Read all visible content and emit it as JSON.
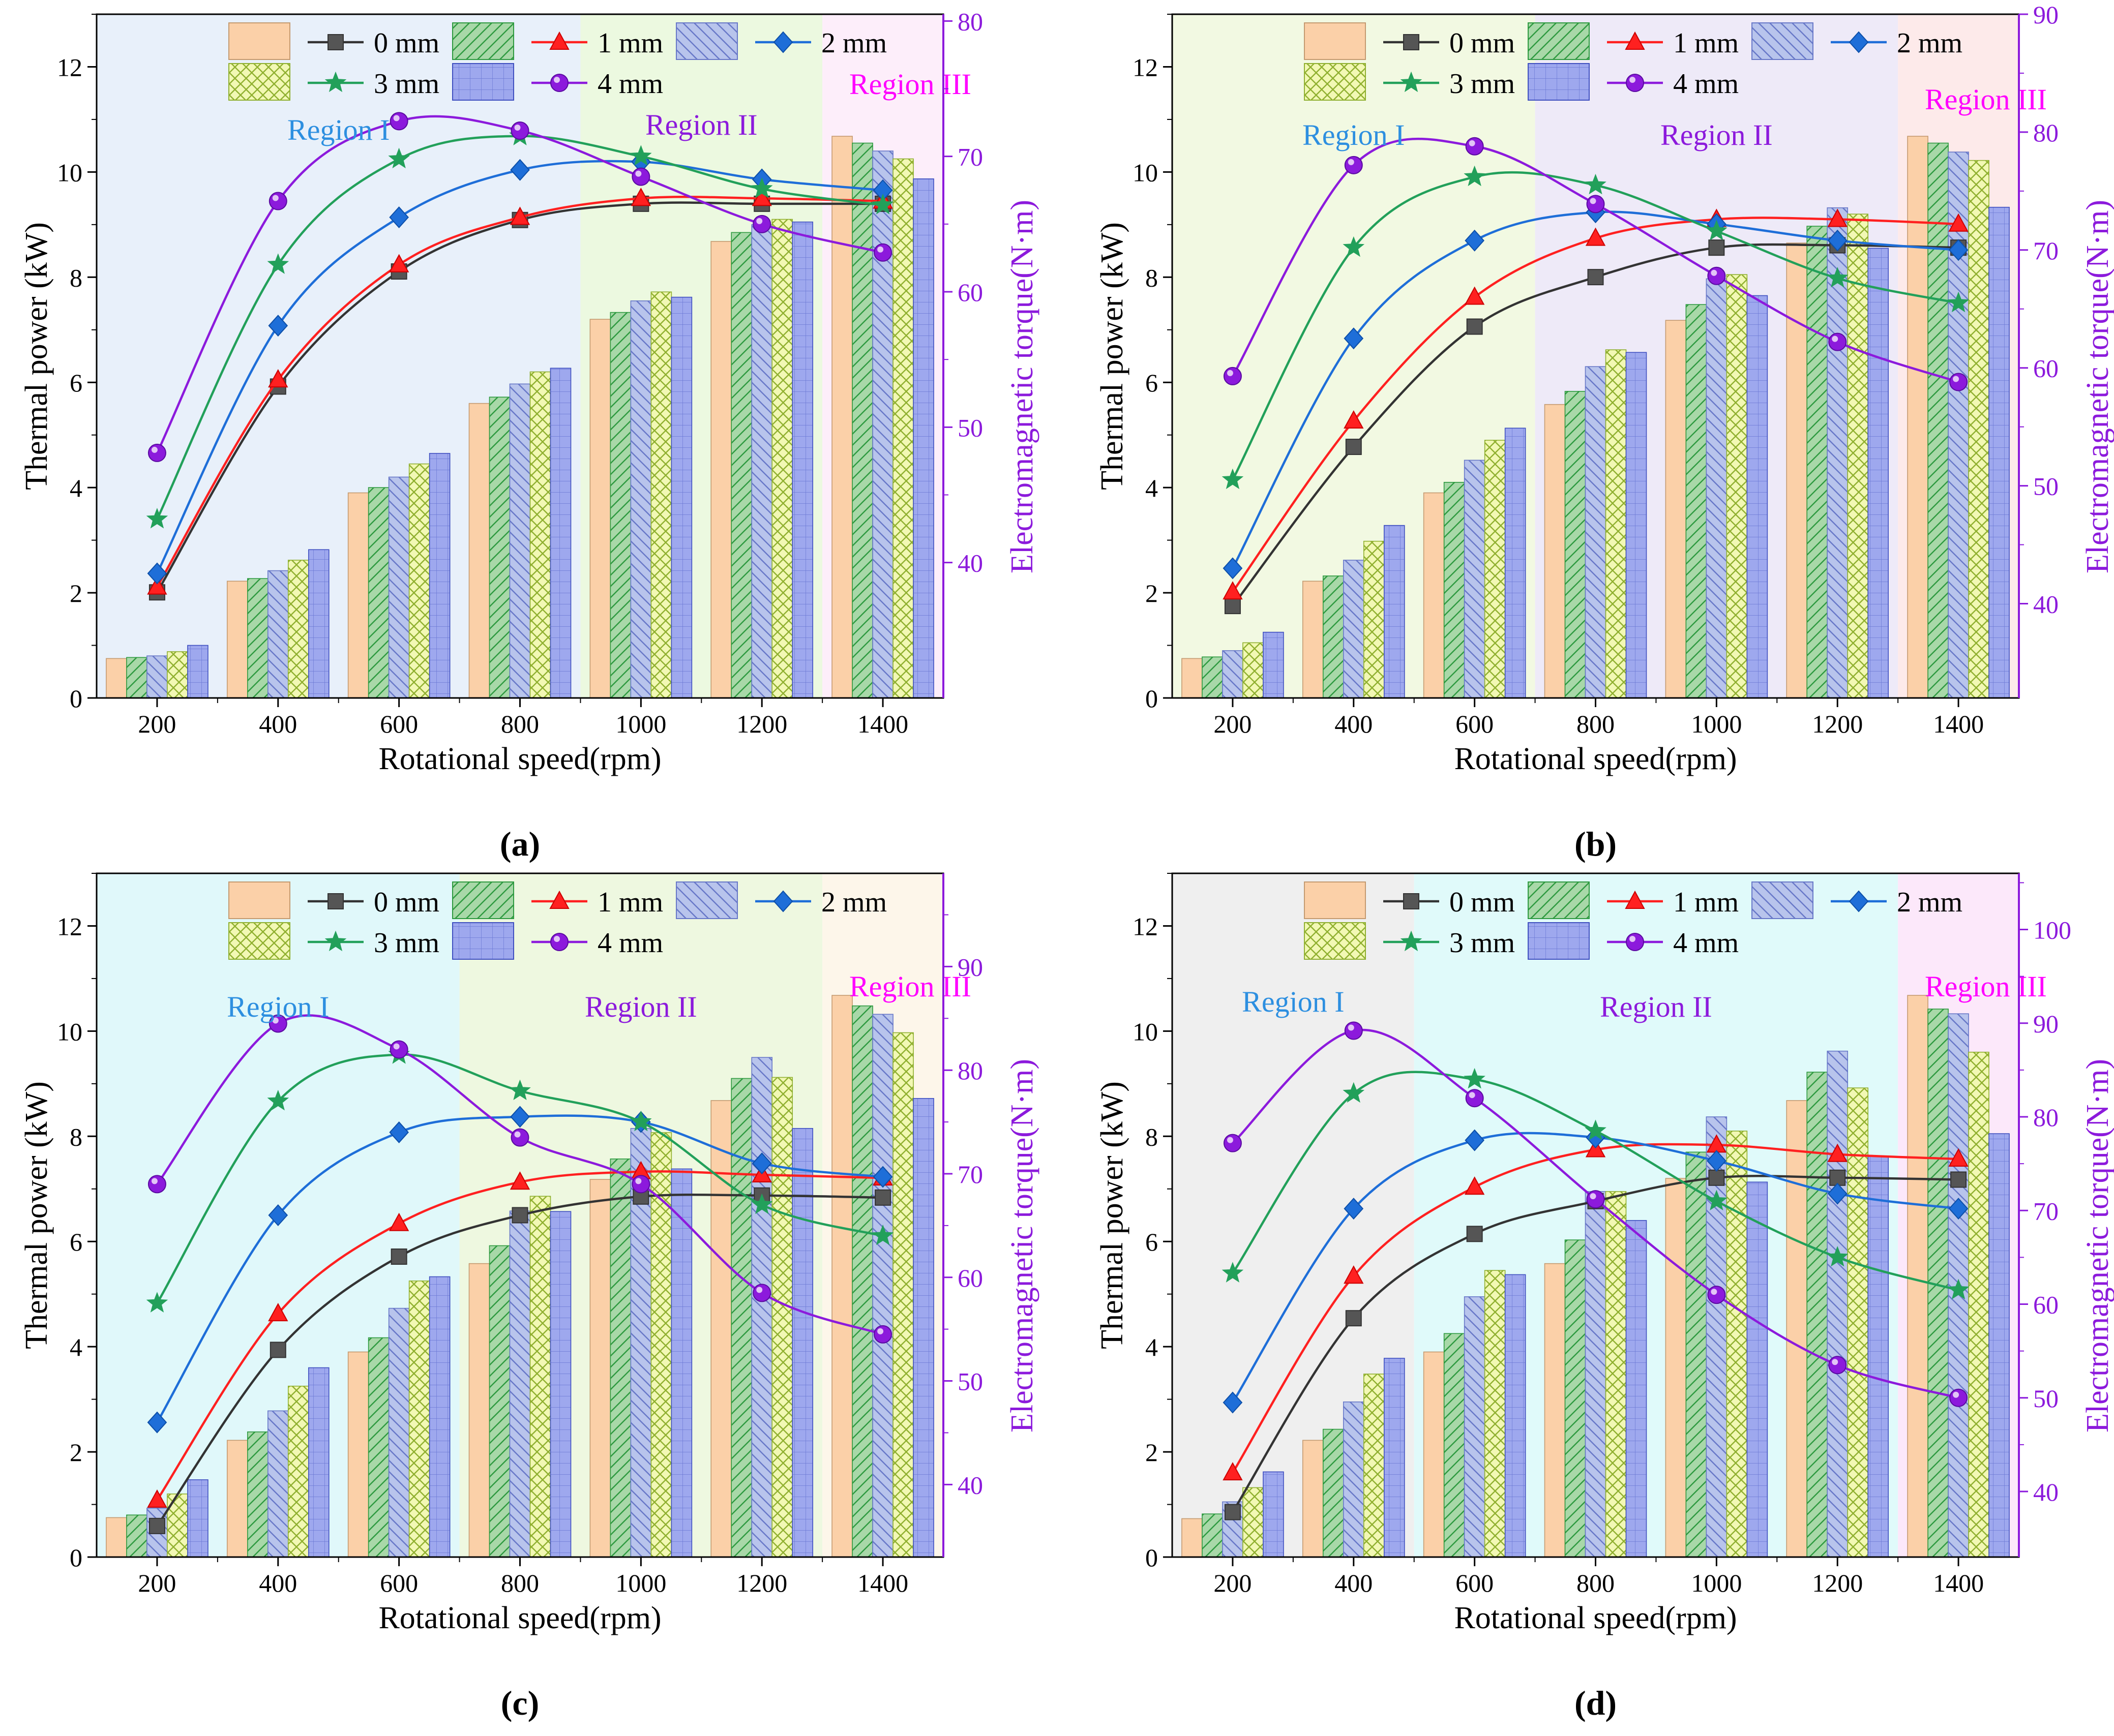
{
  "figure": {
    "bar_hatches": [
      "solid",
      "diag",
      "backdiag",
      "cross",
      "grid"
    ],
    "line_markers": [
      "square",
      "triangle",
      "diamond",
      "star",
      "circle"
    ]
  },
  "colors": {
    "bar_fills": [
      "#fbd0a8",
      "#a8d8a8",
      "#b8c4ec",
      "#f2f8b4",
      "#9ea8ee"
    ],
    "bar_strokes": [
      "#c49a70",
      "#2e9a40",
      "#6878c8",
      "#90b030",
      "#4050c0"
    ],
    "line_colors": [
      "#333333",
      "#ff2020",
      "#1e6ed8",
      "#22a05a",
      "#8c1adc"
    ],
    "torque_axis": "#8c1adc",
    "region_label_colors": [
      "#2d8fe0",
      "#8c1adc",
      "#ff00ff"
    ]
  },
  "chart_data": [
    {
      "type": "bar+line",
      "caption": "(a)",
      "xlabel": "Rotational speed(rpm)",
      "ylabel": "Thermal power (kW)",
      "y2label": "Electromagnetic torque(N·m)",
      "xlim": [
        100,
        1500
      ],
      "ylim": [
        0,
        13
      ],
      "y2lim": [
        30,
        80.5
      ],
      "y2_ticks": [
        40,
        50,
        60,
        70,
        80
      ],
      "categories": [
        200,
        400,
        600,
        800,
        1000,
        1200,
        1400
      ],
      "legend": [
        "0 mm",
        "1 mm",
        "2 mm",
        "3 mm",
        "4 mm"
      ],
      "regions": [
        {
          "label": "Region I",
          "from": 100,
          "to": 900,
          "fill": "#e8f0fa"
        },
        {
          "label": "Region II",
          "from": 900,
          "to": 1300,
          "fill": "#ecf9e0"
        },
        {
          "label": "Region III",
          "from": 1300,
          "to": 1500,
          "fill": "#fdeefa"
        }
      ],
      "bar_series": [
        {
          "name": "0 mm",
          "values": [
            0.75,
            2.22,
            3.9,
            5.6,
            7.2,
            8.68,
            10.68
          ]
        },
        {
          "name": "1 mm",
          "values": [
            0.77,
            2.27,
            4.0,
            5.72,
            7.33,
            8.85,
            10.55
          ]
        },
        {
          "name": "2 mm",
          "values": [
            0.8,
            2.42,
            4.2,
            5.97,
            7.55,
            9.0,
            10.4
          ]
        },
        {
          "name": "3 mm",
          "values": [
            0.88,
            2.62,
            4.45,
            6.2,
            7.72,
            9.1,
            10.25
          ]
        },
        {
          "name": "4 mm",
          "values": [
            1.0,
            2.82,
            4.65,
            6.27,
            7.62,
            9.05,
            9.87
          ]
        }
      ],
      "line_series": [
        {
          "name": "0 mm",
          "values": [
            37.8,
            53.0,
            61.5,
            65.3,
            66.5,
            66.5,
            66.5
          ]
        },
        {
          "name": "1 mm",
          "values": [
            38.2,
            53.5,
            62.0,
            65.5,
            66.9,
            66.9,
            66.7
          ]
        },
        {
          "name": "2 mm",
          "values": [
            39.2,
            57.5,
            65.5,
            69.0,
            69.6,
            68.3,
            67.5
          ]
        },
        {
          "name": "3 mm",
          "values": [
            43.2,
            62.0,
            69.8,
            71.5,
            70.0,
            67.6,
            66.4
          ]
        },
        {
          "name": "4 mm",
          "values": [
            48.1,
            66.7,
            72.6,
            71.9,
            68.5,
            65.0,
            62.9
          ]
        }
      ]
    },
    {
      "type": "bar+line",
      "caption": "(b)",
      "xlabel": "Rotational speed(rpm)",
      "ylabel": "Thermal power (kW)",
      "y2label": "Electromagnetic torque(N·m)",
      "xlim": [
        100,
        1500
      ],
      "ylim": [
        0,
        13
      ],
      "y2lim": [
        32,
        90
      ],
      "y2_ticks": [
        40,
        50,
        60,
        70,
        80,
        90
      ],
      "categories": [
        200,
        400,
        600,
        800,
        1000,
        1200,
        1400
      ],
      "legend": [
        "0 mm",
        "1 mm",
        "2 mm",
        "3 mm",
        "4 mm"
      ],
      "regions": [
        {
          "label": "Region I",
          "from": 100,
          "to": 700,
          "fill": "#f2f9e2"
        },
        {
          "label": "Region II",
          "from": 700,
          "to": 1300,
          "fill": "#eeeaf8"
        },
        {
          "label": "Region III",
          "from": 1300,
          "to": 1500,
          "fill": "#fdeaea"
        }
      ],
      "bar_series": [
        {
          "name": "0 mm",
          "values": [
            0.75,
            2.22,
            3.9,
            5.58,
            7.18,
            8.65,
            10.68
          ]
        },
        {
          "name": "1 mm",
          "values": [
            0.78,
            2.32,
            4.1,
            5.83,
            7.48,
            8.97,
            10.55
          ]
        },
        {
          "name": "2 mm",
          "values": [
            0.9,
            2.62,
            4.52,
            6.3,
            7.97,
            9.32,
            10.38
          ]
        },
        {
          "name": "3 mm",
          "values": [
            1.05,
            2.98,
            4.9,
            6.62,
            8.05,
            9.2,
            10.22
          ]
        },
        {
          "name": "4 mm",
          "values": [
            1.25,
            3.28,
            5.13,
            6.57,
            7.65,
            8.55,
            9.33
          ]
        }
      ],
      "line_series": [
        {
          "name": "0 mm",
          "values": [
            39.8,
            53.3,
            63.5,
            67.7,
            70.2,
            70.4,
            70.2
          ]
        },
        {
          "name": "1 mm",
          "values": [
            41.0,
            55.5,
            66.0,
            71.0,
            72.6,
            72.6,
            72.2
          ]
        },
        {
          "name": "2 mm",
          "values": [
            43.0,
            62.5,
            70.8,
            73.2,
            72.2,
            70.8,
            70.0
          ]
        },
        {
          "name": "3 mm",
          "values": [
            50.5,
            70.2,
            76.2,
            75.5,
            71.6,
            67.6,
            65.5
          ]
        },
        {
          "name": "4 mm",
          "values": [
            59.3,
            77.2,
            78.8,
            73.9,
            67.8,
            62.2,
            58.8
          ]
        }
      ]
    },
    {
      "type": "bar+line",
      "caption": "(c)",
      "xlabel": "Rotational speed(rpm)",
      "ylabel": "Thermal power (kW)",
      "y2label": "Electromagnetic torque(N·m)",
      "xlim": [
        100,
        1500
      ],
      "ylim": [
        0,
        13
      ],
      "y2lim": [
        33,
        99
      ],
      "y2_ticks": [
        40,
        50,
        60,
        70,
        80,
        90
      ],
      "categories": [
        200,
        400,
        600,
        800,
        1000,
        1200,
        1400
      ],
      "legend": [
        "0 mm",
        "1 mm",
        "2 mm",
        "3 mm",
        "4 mm"
      ],
      "regions": [
        {
          "label": "Region I",
          "from": 100,
          "to": 700,
          "fill": "#e0f8fa"
        },
        {
          "label": "Region II",
          "from": 700,
          "to": 1300,
          "fill": "#eef8e0"
        },
        {
          "label": "Region III",
          "from": 1300,
          "to": 1500,
          "fill": "#fdf6ea"
        }
      ],
      "bar_series": [
        {
          "name": "0 mm",
          "values": [
            0.75,
            2.22,
            3.9,
            5.58,
            7.18,
            8.68,
            10.68
          ]
        },
        {
          "name": "1 mm",
          "values": [
            0.8,
            2.38,
            4.17,
            5.92,
            7.57,
            9.1,
            10.48
          ]
        },
        {
          "name": "2 mm",
          "values": [
            0.93,
            2.78,
            4.73,
            6.58,
            8.15,
            9.5,
            10.32
          ]
        },
        {
          "name": "3 mm",
          "values": [
            1.2,
            3.25,
            5.25,
            6.86,
            8.07,
            9.12,
            9.97
          ]
        },
        {
          "name": "4 mm",
          "values": [
            1.47,
            3.6,
            5.33,
            6.57,
            7.38,
            8.15,
            8.72
          ]
        }
      ],
      "line_series": [
        {
          "name": "0 mm",
          "values": [
            36.0,
            53.0,
            62.0,
            66.0,
            67.8,
            67.9,
            67.7
          ]
        },
        {
          "name": "1 mm",
          "values": [
            38.5,
            56.5,
            65.2,
            69.2,
            70.2,
            69.9,
            69.6
          ]
        },
        {
          "name": "2 mm",
          "values": [
            46.0,
            66.0,
            74.0,
            75.5,
            75.0,
            71.0,
            69.7
          ]
        },
        {
          "name": "3 mm",
          "values": [
            57.5,
            77.0,
            81.5,
            78.0,
            75.0,
            67.0,
            64.0
          ]
        },
        {
          "name": "4 mm",
          "values": [
            69.0,
            84.5,
            82.0,
            73.5,
            69.0,
            58.5,
            54.5
          ]
        }
      ]
    },
    {
      "type": "bar+line",
      "caption": "(d)",
      "xlabel": "Rotational speed(rpm)",
      "ylabel": "Thermal power (kW)",
      "y2label": "Electromagnetic torque(N·m)",
      "xlim": [
        100,
        1500
      ],
      "ylim": [
        0,
        13
      ],
      "y2lim": [
        33,
        106
      ],
      "y2_ticks": [
        40,
        50,
        60,
        70,
        80,
        90,
        100
      ],
      "categories": [
        200,
        400,
        600,
        800,
        1000,
        1200,
        1400
      ],
      "legend": [
        "0 mm",
        "1 mm",
        "2 mm",
        "3 mm",
        "4 mm"
      ],
      "regions": [
        {
          "label": "Region I",
          "from": 100,
          "to": 500,
          "fill": "#efefef"
        },
        {
          "label": "Region II",
          "from": 500,
          "to": 1300,
          "fill": "#e0fafa"
        },
        {
          "label": "Region III",
          "from": 1300,
          "to": 1500,
          "fill": "#fce8fa"
        }
      ],
      "bar_series": [
        {
          "name": "0 mm",
          "values": [
            0.73,
            2.22,
            3.9,
            5.58,
            7.2,
            8.68,
            10.68
          ]
        },
        {
          "name": "1 mm",
          "values": [
            0.82,
            2.43,
            4.25,
            6.03,
            7.7,
            9.22,
            10.42
          ]
        },
        {
          "name": "2 mm",
          "values": [
            1.05,
            2.95,
            4.95,
            6.95,
            8.37,
            9.62,
            10.33
          ]
        },
        {
          "name": "3 mm",
          "values": [
            1.32,
            3.48,
            5.45,
            6.95,
            8.1,
            8.92,
            9.6
          ]
        },
        {
          "name": "4 mm",
          "values": [
            1.62,
            3.78,
            5.37,
            6.4,
            7.13,
            7.62,
            8.05
          ]
        }
      ],
      "line_series": [
        {
          "name": "0 mm",
          "values": [
            37.8,
            58.5,
            67.5,
            71.0,
            73.5,
            73.5,
            73.3
          ]
        },
        {
          "name": "1 mm",
          "values": [
            42.0,
            63.0,
            72.5,
            76.5,
            77.0,
            76.0,
            75.5
          ]
        },
        {
          "name": "2 mm",
          "values": [
            49.5,
            70.2,
            77.5,
            77.8,
            75.3,
            71.8,
            70.2
          ]
        },
        {
          "name": "3 mm",
          "values": [
            63.3,
            82.5,
            84.0,
            78.5,
            71.0,
            65.0,
            61.5
          ]
        },
        {
          "name": "4 mm",
          "values": [
            77.2,
            89.2,
            82.0,
            71.2,
            61.0,
            53.5,
            50.0
          ]
        }
      ]
    }
  ]
}
